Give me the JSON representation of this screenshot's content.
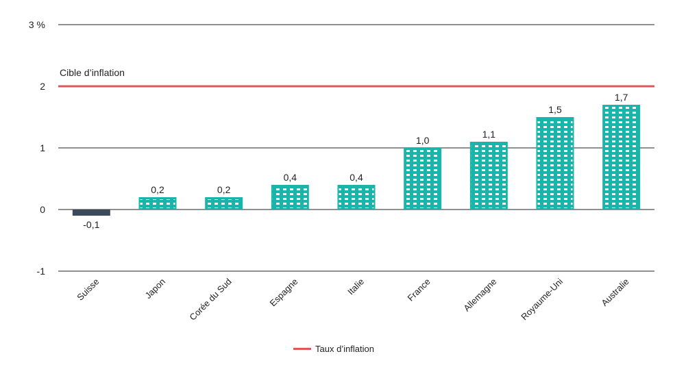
{
  "chart_data": {
    "type": "bar",
    "categories": [
      "Suisse",
      "Japon",
      "Corée du Sud",
      "Espagne",
      "Italie",
      "France",
      "Allemagne",
      "Royaume-Uni",
      "Australie"
    ],
    "values": [
      -0.1,
      0.2,
      0.2,
      0.4,
      0.4,
      1.0,
      1.1,
      1.5,
      1.7
    ],
    "data_labels": [
      "-0,1",
      "0,2",
      "0,2",
      "0,4",
      "0,4",
      "1,0",
      "1,1",
      "1,5",
      "1,7"
    ],
    "ylim": [
      -1,
      3
    ],
    "y_ticks": [
      3,
      2,
      1,
      0,
      -1
    ],
    "y_tick_labels": [
      "3 %",
      "2",
      "1",
      "0",
      "-1"
    ],
    "reference_line": {
      "value": 2,
      "label": "Cible d’inflation",
      "color": "#e0575b"
    },
    "legend": {
      "label": "Taux d’inflation",
      "position": "bottom-center"
    },
    "colors": {
      "positive": "#19b5aa",
      "negative": "#3d4a5c",
      "grid": "#222222",
      "target": "#e0575b"
    },
    "grid": true
  }
}
